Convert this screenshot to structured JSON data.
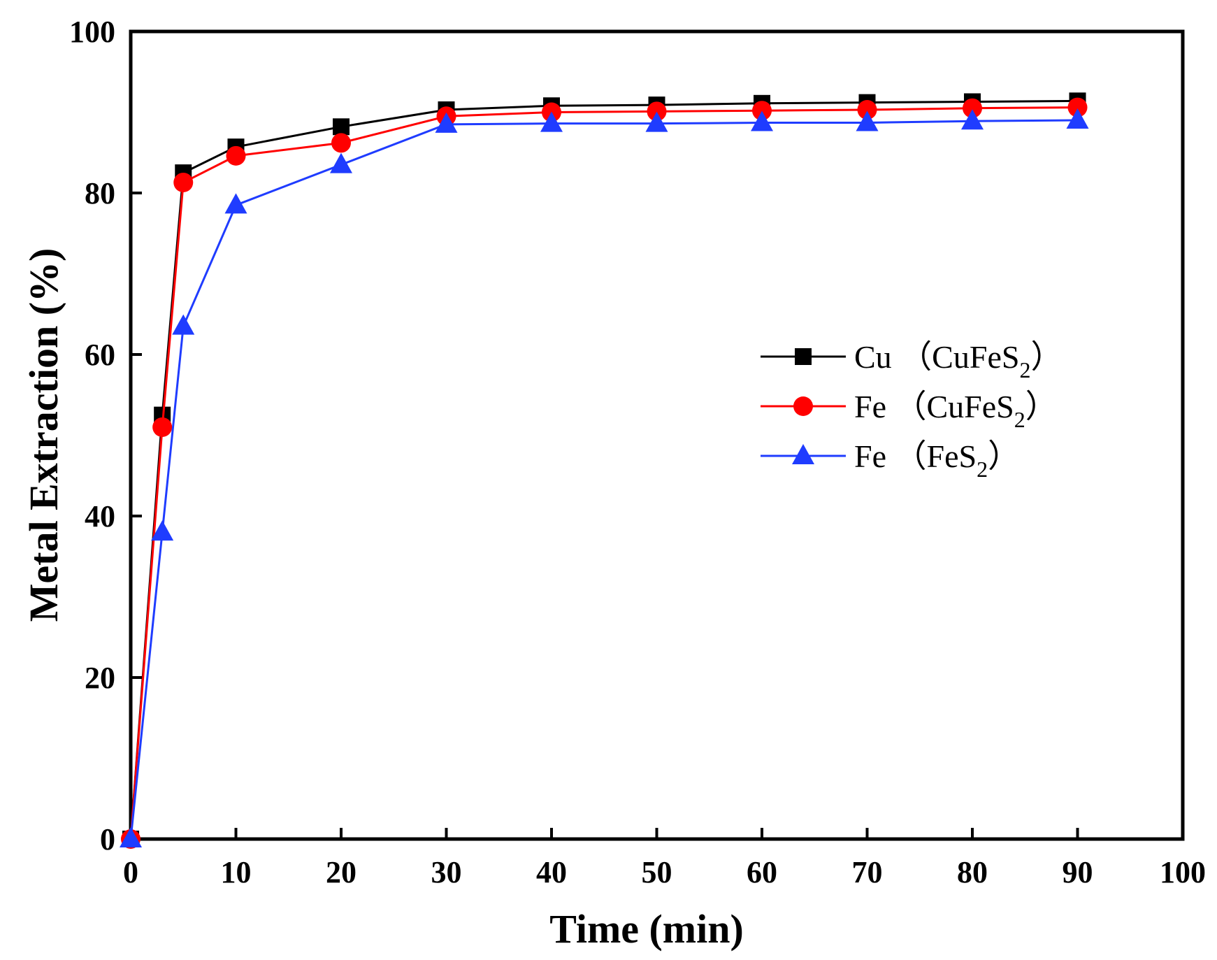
{
  "chart_data": {
    "type": "line",
    "title": "",
    "xlabel": "Time (min)",
    "ylabel": "Metal Extraction (%)",
    "xlim": [
      0,
      100
    ],
    "ylim": [
      0,
      100
    ],
    "xticks": [
      "0",
      "10",
      "20",
      "30",
      "40",
      "50",
      "60",
      "70",
      "80",
      "90",
      "100"
    ],
    "yticks": [
      "0",
      "20",
      "40",
      "60",
      "80",
      "100"
    ],
    "grid": false,
    "legend_position": "right-middle",
    "x": [
      0,
      3,
      5,
      10,
      20,
      30,
      40,
      50,
      60,
      70,
      80,
      90
    ],
    "series": [
      {
        "name": "Cu (CuFeS2)",
        "legend_main": "Cu （CuFeS",
        "legend_sub": "2",
        "legend_close": "）",
        "marker": "square",
        "color": "#000000",
        "values": [
          0,
          52.5,
          82.5,
          85.7,
          88.2,
          90.3,
          90.8,
          90.9,
          91.1,
          91.2,
          91.3,
          91.4
        ]
      },
      {
        "name": "Fe (CuFeS2)",
        "legend_main": "Fe （CuFeS",
        "legend_sub": "2",
        "legend_close": "）",
        "marker": "circle",
        "color": "#ff0000",
        "values": [
          0,
          51.0,
          81.3,
          84.6,
          86.2,
          89.5,
          90.0,
          90.1,
          90.2,
          90.3,
          90.5,
          90.6
        ]
      },
      {
        "name": "Fe (FeS2)",
        "legend_main": "Fe （FeS",
        "legend_sub": "2",
        "legend_close": "）",
        "marker": "triangle",
        "color": "#1f3cff",
        "values": [
          0,
          38.0,
          63.5,
          78.5,
          83.5,
          88.5,
          88.6,
          88.6,
          88.7,
          88.7,
          88.9,
          89.0
        ]
      }
    ]
  }
}
